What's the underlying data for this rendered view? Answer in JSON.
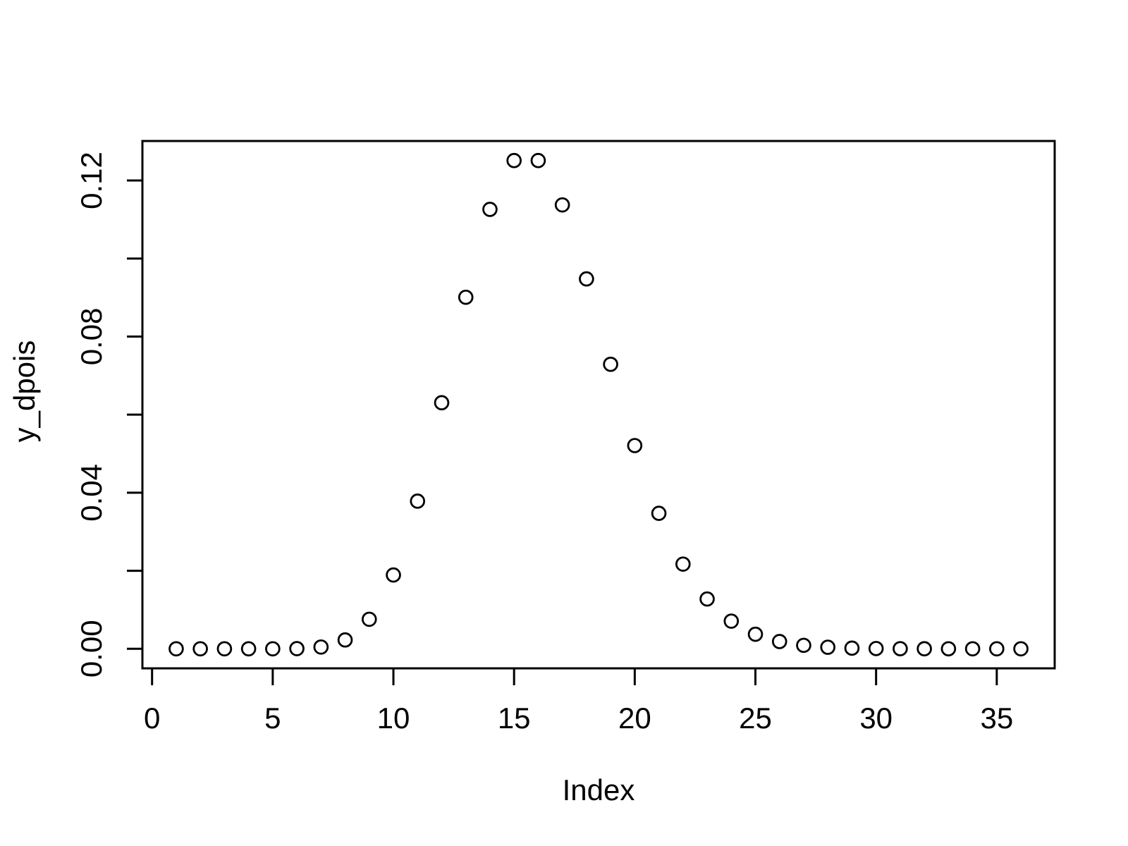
{
  "figure": {
    "background_color": "#ffffff",
    "foreground_color": "#000000"
  },
  "chart_data": {
    "type": "scatter",
    "title": "",
    "xlabel": "Index",
    "ylabel": "y_dpois",
    "marker": "open-circle",
    "grid": false,
    "legend": null,
    "x": [
      1,
      2,
      3,
      4,
      5,
      6,
      7,
      8,
      9,
      10,
      11,
      12,
      13,
      14,
      15,
      16,
      17,
      18,
      19,
      20,
      21,
      22,
      23,
      24,
      25,
      26,
      27,
      28,
      29,
      30,
      31,
      32,
      33,
      34,
      35,
      36
    ],
    "y": [
      0,
      0,
      0,
      0,
      0,
      4.54e-05,
      0.000454,
      0.00227,
      0.0075667,
      0.0189166,
      0.0378333,
      0.0630555,
      0.0900792,
      0.112599,
      0.12511,
      0.12511,
      0.1137364,
      0.0947803,
      0.0729079,
      0.0520771,
      0.0347181,
      0.0216988,
      0.012764,
      0.0070911,
      0.0037322,
      0.0018661,
      0.0008886,
      0.0004039,
      0.0001756,
      7.32e-05,
      2.93e-05,
      1.13e-05,
      4.2e-06,
      1.5e-06,
      5e-07,
      2e-07
    ],
    "xlim": [
      -0.4,
      37.4
    ],
    "ylim": [
      -0.0050044,
      0.1301144
    ],
    "x_ticks": {
      "values": [
        0,
        5,
        10,
        15,
        20,
        25,
        30,
        35
      ],
      "labels": [
        "0",
        "5",
        "10",
        "15",
        "20",
        "25",
        "30",
        "35"
      ]
    },
    "y_ticks": {
      "values": [
        0,
        0.02,
        0.04,
        0.06,
        0.08,
        0.1,
        0.12
      ],
      "labels": [
        "0.00",
        "",
        "0.04",
        "",
        "0.08",
        "",
        "0.12"
      ]
    }
  }
}
